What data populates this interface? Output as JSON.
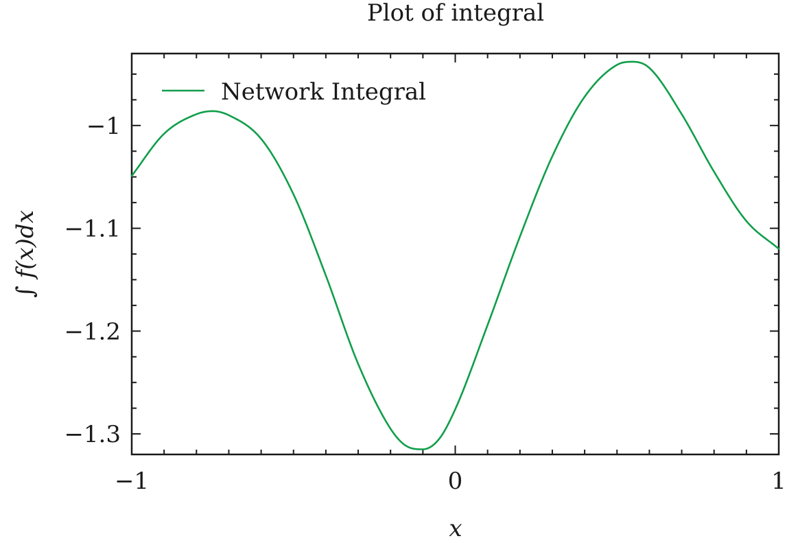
{
  "chart_data": {
    "type": "line",
    "title": "Plot of integral",
    "xlabel": "x",
    "ylabel": "∫ f(x)dx",
    "xlim": [
      -1,
      1
    ],
    "ylim": [
      -1.32,
      -0.93
    ],
    "xticks": [
      -1,
      0,
      1
    ],
    "xtick_labels": [
      "−1",
      "0",
      "1"
    ],
    "yticks": [
      -1.3,
      -1.2,
      -1.1,
      -1.0
    ],
    "ytick_labels": [
      "−1.3",
      "−1.2",
      "−1.1",
      "−1"
    ],
    "x_minor_step": 0.1,
    "y_minor_step": 0.025,
    "grid": false,
    "legend_position": "top-left",
    "series": [
      {
        "name": "Network Integral",
        "color": "#109e4a",
        "x": [
          -1.0,
          -0.9,
          -0.8,
          -0.75,
          -0.7,
          -0.6,
          -0.5,
          -0.4,
          -0.3,
          -0.2,
          -0.15,
          -0.1,
          -0.05,
          0.0,
          0.1,
          0.2,
          0.3,
          0.4,
          0.5,
          0.55,
          0.6,
          0.7,
          0.8,
          0.9,
          1.0
        ],
        "y": [
          -1.049,
          -1.008,
          -0.989,
          -0.986,
          -0.99,
          -1.013,
          -1.067,
          -1.146,
          -1.232,
          -1.295,
          -1.312,
          -1.315,
          -1.305,
          -1.276,
          -1.194,
          -1.108,
          -1.03,
          -0.972,
          -0.941,
          -0.938,
          -0.944,
          -0.989,
          -1.045,
          -1.093,
          -1.12
        ]
      }
    ]
  }
}
